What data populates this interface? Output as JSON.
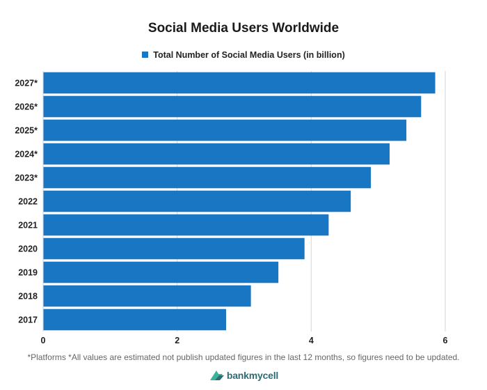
{
  "chart_data": {
    "type": "bar",
    "orientation": "horizontal",
    "title": "Social Media Users Worldwide",
    "categories": [
      "2027*",
      "2026*",
      "2025*",
      "2024*",
      "2023*",
      "2022",
      "2021",
      "2020",
      "2019",
      "2018",
      "2017"
    ],
    "series": [
      {
        "name": "Total Number of Social Media Users (in billion)",
        "values": [
          5.85,
          5.64,
          5.42,
          5.17,
          4.89,
          4.59,
          4.26,
          3.9,
          3.51,
          3.1,
          2.73
        ]
      }
    ],
    "xlim": [
      0,
      6
    ],
    "xticks": [
      "0",
      "2",
      "4",
      "6"
    ],
    "grid": true,
    "legend_position": "top-center",
    "bar_color": "#1976c2"
  },
  "footnote": "*Platforms *All values are estimated not publish updated figures in the last 12 months, so figures need to be updated.",
  "brand": {
    "logo_text": "bankmycell",
    "icon": "bankmycell-logo-icon"
  }
}
